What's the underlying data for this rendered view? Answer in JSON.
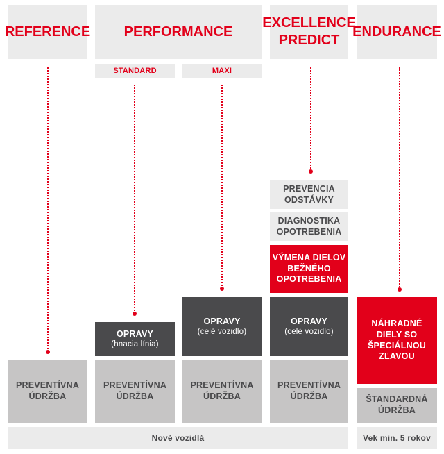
{
  "headers": {
    "reference": "REFERENCE",
    "performance": "PERFORMANCE",
    "excellence_line1": "EXCELLENCE",
    "excellence_line2": "PREDICT",
    "endurance": "ENDURANCE"
  },
  "subheaders": {
    "standard": "STANDARD",
    "maxi": "MAXI"
  },
  "tiers": {
    "preventive_line1": "PREVENTÍVNA",
    "preventive_line2": "ÚDRŽBA",
    "repairs_label": "OPRAVY",
    "repairs_drivetrain": "(hnacia línia)",
    "repairs_whole_vehicle": "(celé vozidlo)",
    "wear_replacement_line1": "VÝMENA DIELOV",
    "wear_replacement_line2": "BEŽNÉHO",
    "wear_replacement_line3": "OPOTREBENIA",
    "wear_diagnostics_line1": "DIAGNOSTIKA",
    "wear_diagnostics_line2": "OPOTREBENIA",
    "downtime_prevention_line1": "PREVENCIA",
    "downtime_prevention_line2": "ODSTÁVKY",
    "spare_parts_line1": "NÁHRADNÉ",
    "spare_parts_line2": "DIELY SO",
    "spare_parts_line3": "ŠPECIÁLNOU",
    "spare_parts_line4": "ZĽAVOU",
    "standard_maintenance_line1": "ŠTANDARDNÁ",
    "standard_maintenance_line2": "ÚDRŽBA"
  },
  "footer": {
    "new_vehicles": "Nové vozidlá",
    "age_min": "Vek min. 5 rokov"
  },
  "colors": {
    "accent_red": "#e2001a",
    "dark_grey": "#4a4a4c",
    "mid_grey": "#c6c5c5",
    "light_grey": "#ebebeb"
  }
}
